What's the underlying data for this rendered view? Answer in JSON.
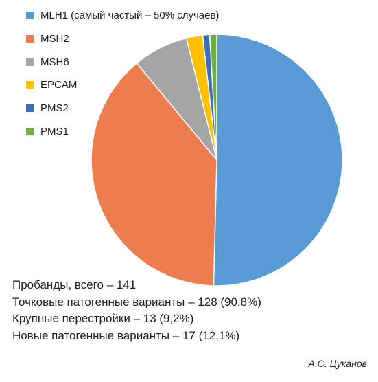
{
  "chart_data": {
    "type": "pie",
    "slices": [
      {
        "label": "MLH1 (самый частый – 50% случаев)",
        "value": 50.4,
        "color": "#5b9bd5"
      },
      {
        "label": "MSH2",
        "value": 38.6,
        "color": "#ed7d4f"
      },
      {
        "label": "MSH6",
        "value": 7.1,
        "color": "#a5a5a5"
      },
      {
        "label": "EPCAM",
        "value": 2.1,
        "color": "#ffc000"
      },
      {
        "label": "PMS2",
        "value": 0.9,
        "color": "#3a6fb5"
      },
      {
        "label": "PMS1",
        "value": 0.9,
        "color": "#70ad47"
      }
    ],
    "legend_position": "top-left"
  },
  "notes": [
    "Пробанды, всего – 141",
    "Точковые патогенные варианты – 128 (90,8%)",
    "Крупные перестройки – 13 (9,2%)",
    "Новые патогенные варианты – 17 (12,1%)"
  ],
  "author": "А.С. Цуканов"
}
